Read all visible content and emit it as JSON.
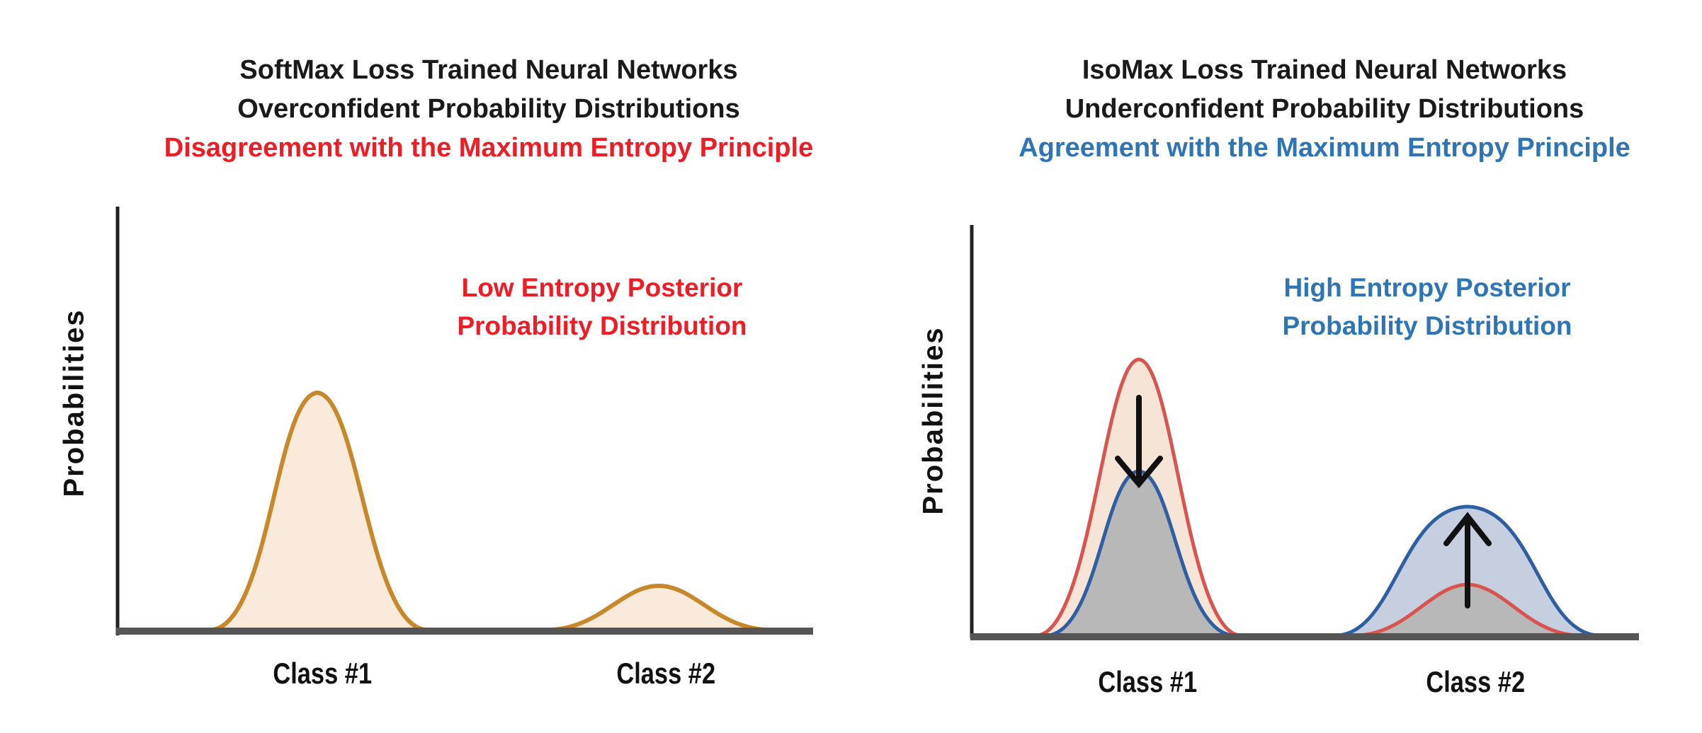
{
  "left_panel": {
    "title_lines": [
      "SoftMax Loss Trained Neural Networks",
      "Overconfident Probability Distributions"
    ],
    "principle_line": "Disagreement with the Maximum Entropy Principle",
    "annotation_lines": [
      "Low Entropy Posterior",
      "Probability Distribution"
    ],
    "ylabel": "Probabilities",
    "classes": [
      "Class #1",
      "Class #2"
    ]
  },
  "right_panel": {
    "title_lines": [
      "IsoMax Loss Trained Neural Networks",
      "Underconfident Probability Distributions"
    ],
    "principle_line": "Agreement with the Maximum Entropy Principle",
    "annotation_lines": [
      "High Entropy Posterior",
      "Probability Distribution"
    ],
    "ylabel": "Probabilities",
    "classes": [
      "Class #1",
      "Class #2"
    ]
  },
  "colors": {
    "red_text": "#ee1c24",
    "blue_text": "#2e75b6",
    "softmax_curve": "#c8882a",
    "softmax_fill": "#f9eadb",
    "isomax_curve": "#2e5fa3",
    "red_curve": "#d9534f",
    "gray_fill": "#b8b8b8",
    "axis": "#555555"
  }
}
